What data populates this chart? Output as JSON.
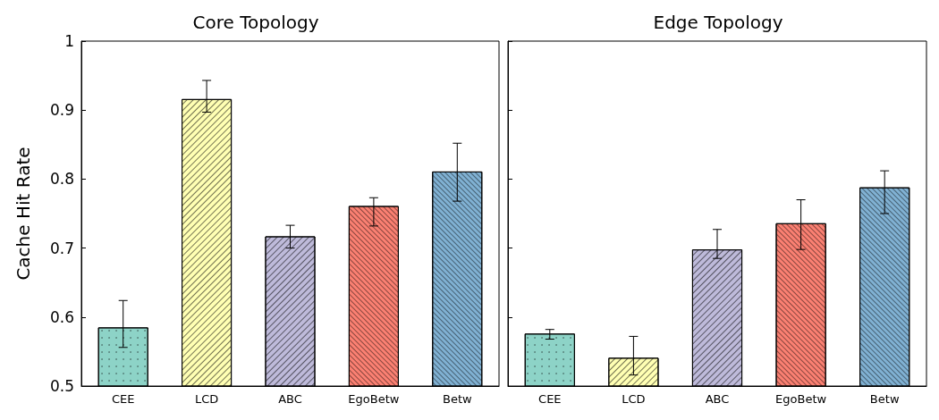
{
  "chart_data": [
    {
      "type": "bar",
      "title": "Core Topology",
      "ylabel": "Cache Hit Rate",
      "categories": [
        "CEE",
        "LCD",
        "ABC",
        "EgoBetw",
        "Betw"
      ],
      "values": [
        0.585,
        0.916,
        0.717,
        0.761,
        0.811
      ],
      "colors": [
        "#8dd3c7",
        "#ffffb3",
        "#bebada",
        "#fb8072",
        "#80b1d3"
      ],
      "errors": [
        [
          0.556,
          0.624
        ],
        [
          0.897,
          0.943
        ],
        [
          0.7,
          0.733
        ],
        [
          0.732,
          0.773
        ],
        [
          0.768,
          0.852
        ]
      ],
      "ylim": [
        0.5,
        1
      ],
      "yticks": [
        0.5,
        0.6,
        0.7,
        0.8,
        0.9,
        1
      ],
      "grid": false
    },
    {
      "type": "bar",
      "title": "Edge Topology",
      "categories": [
        "CEE",
        "LCD",
        "ABC",
        "EgoBetw",
        "Betw"
      ],
      "values": [
        0.576,
        0.541,
        0.698,
        0.736,
        0.788
      ],
      "colors": [
        "#8dd3c7",
        "#ffffb3",
        "#bebada",
        "#fb8072",
        "#80b1d3"
      ],
      "errors": [
        [
          0.568,
          0.582
        ],
        [
          0.516,
          0.572
        ],
        [
          0.685,
          0.727
        ],
        [
          0.698,
          0.77
        ],
        [
          0.75,
          0.812
        ]
      ],
      "ylim": [
        0.5,
        1
      ],
      "yticks": [
        0.5,
        0.6,
        0.7,
        0.8,
        0.9,
        1
      ],
      "tick_labels": "x",
      "grid": false
    }
  ]
}
